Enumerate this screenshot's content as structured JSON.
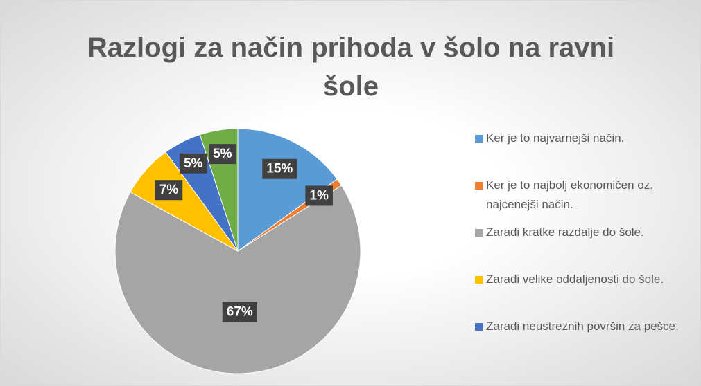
{
  "chart_data": {
    "type": "pie",
    "title": "Razlogi za način prihoda v šolo na ravni šole",
    "categories": [
      "Ker je to najvarnejši način.",
      "Ker je to najbolj ekonomičen oz. najcenejši način.",
      "Zaradi kratke razdalje do šole.",
      "Zaradi velike oddaljenosti do šole.",
      "Zaradi neustreznih površin za pešce.",
      null
    ],
    "values": [
      15,
      1,
      67,
      7,
      5,
      5
    ],
    "value_labels": [
      "15%",
      "1%",
      "67%",
      "7%",
      "5%",
      "5%"
    ],
    "colors": [
      "#5b9bd5",
      "#ed7d31",
      "#a5a5a5",
      "#ffc000",
      "#4472c4",
      "#70ad47"
    ]
  }
}
